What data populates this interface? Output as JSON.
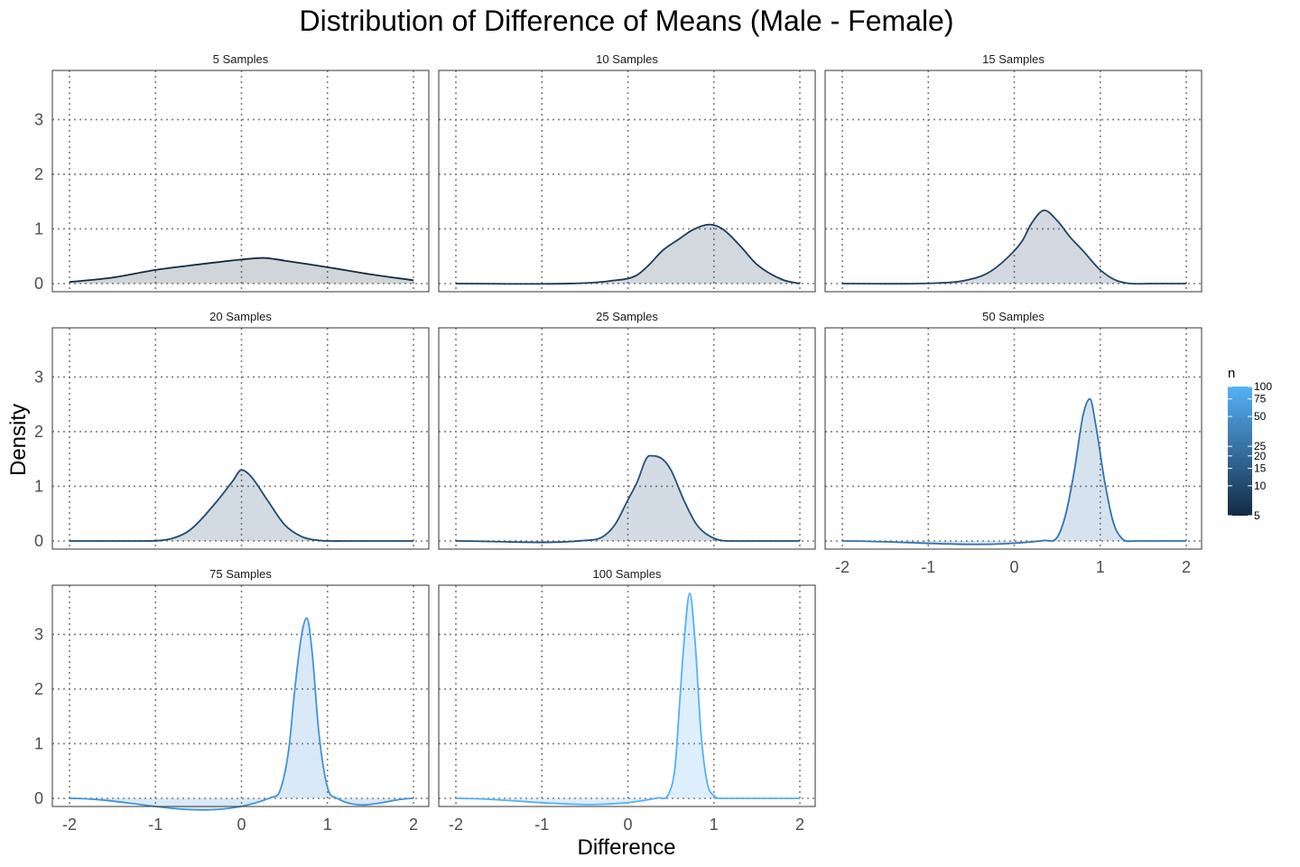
{
  "chart_data": {
    "type": "area",
    "title": "Distribution of Difference of Means (Male - Female)",
    "xlabel": "Difference",
    "ylabel": "Density",
    "xlim": [
      -2,
      2
    ],
    "ylim": [
      0,
      3.9
    ],
    "x_ticks": [
      -2,
      -1,
      0,
      1,
      2
    ],
    "y_ticks": [
      0,
      1,
      2,
      3
    ],
    "grid": true,
    "legend": {
      "title": "n",
      "placement": "right",
      "ticks": [
        5,
        10,
        15,
        20,
        25,
        50,
        75,
        100
      ],
      "color_low": "#132B43",
      "color_high": "#56B1F7"
    },
    "panels": [
      {
        "label": "5  Samples",
        "n": 5,
        "color": "#132B43",
        "x": [
          -2.0,
          -1.5,
          -1.0,
          -0.5,
          0.0,
          0.25,
          0.5,
          1.0,
          1.5,
          2.0
        ],
        "y": [
          0.03,
          0.11,
          0.25,
          0.35,
          0.44,
          0.47,
          0.42,
          0.3,
          0.17,
          0.06
        ]
      },
      {
        "label": "10  Samples",
        "n": 10,
        "color": "#1A3A5A",
        "x": [
          -2.0,
          -0.5,
          -0.2,
          0.1,
          0.25,
          0.4,
          0.6,
          0.75,
          0.95,
          1.1,
          1.3,
          1.5,
          1.8,
          2.0
        ],
        "y": [
          0.0,
          0.01,
          0.05,
          0.15,
          0.35,
          0.6,
          0.82,
          0.98,
          1.08,
          1.0,
          0.7,
          0.35,
          0.07,
          0.0
        ],
        "peak": 1.08
      },
      {
        "label": "15  Samples",
        "n": 15,
        "color": "#1E4366",
        "x": [
          -2.0,
          -0.9,
          -0.6,
          -0.3,
          0.0,
          0.1,
          0.2,
          0.35,
          0.5,
          0.65,
          0.8,
          1.0,
          1.2,
          1.6,
          2.0
        ],
        "y": [
          0.0,
          0.01,
          0.05,
          0.2,
          0.6,
          0.8,
          1.1,
          1.34,
          1.15,
          0.85,
          0.6,
          0.25,
          0.05,
          0.0,
          0.0
        ],
        "peak": 1.34
      },
      {
        "label": "20  Samples",
        "n": 20,
        "color": "#224A70",
        "x": [
          -2.0,
          -1.2,
          -0.8,
          -0.6,
          -0.3,
          -0.1,
          0.0,
          0.1,
          0.3,
          0.5,
          0.7,
          0.9,
          1.2,
          2.0
        ],
        "y": [
          0.0,
          0.0,
          0.05,
          0.2,
          0.7,
          1.1,
          1.3,
          1.2,
          0.75,
          0.3,
          0.08,
          0.01,
          0.0,
          0.0
        ],
        "peak": 1.31
      },
      {
        "label": "25  Samples",
        "n": 25,
        "color": "#25507A",
        "x": [
          -2.0,
          -0.5,
          -0.3,
          -0.15,
          0.0,
          0.1,
          0.25,
          0.4,
          0.5,
          0.65,
          0.8,
          1.0,
          1.2,
          2.0
        ],
        "y": [
          0.0,
          0.01,
          0.07,
          0.3,
          0.75,
          1.05,
          1.56,
          1.5,
          1.3,
          0.75,
          0.3,
          0.05,
          0.0,
          0.0
        ],
        "peak": 1.58
      },
      {
        "label": "50  Samples",
        "n": 50,
        "color": "#3373B1",
        "x": [
          -2.0,
          0.35,
          0.5,
          0.6,
          0.7,
          0.8,
          0.88,
          0.95,
          1.05,
          1.15,
          1.25,
          1.4,
          2.0
        ],
        "y": [
          0.0,
          0.01,
          0.07,
          0.5,
          1.3,
          2.3,
          2.6,
          2.1,
          1.1,
          0.35,
          0.05,
          0.0,
          0.0
        ],
        "peak": 2.6
      },
      {
        "label": "75  Samples",
        "n": 75,
        "color": "#4293D6",
        "x": [
          -2.0,
          0.35,
          0.45,
          0.55,
          0.62,
          0.7,
          0.76,
          0.82,
          0.9,
          1.0,
          1.1,
          2.0
        ],
        "y": [
          0.0,
          0.02,
          0.15,
          0.9,
          2.0,
          3.0,
          3.3,
          2.7,
          1.2,
          0.2,
          0.01,
          0.0
        ],
        "peak": 3.3
      },
      {
        "label": "100  Samples",
        "n": 100,
        "color": "#56B1F7",
        "x": [
          -2.0,
          0.35,
          0.48,
          0.55,
          0.6,
          0.65,
          0.72,
          0.78,
          0.85,
          0.92,
          1.0,
          1.1,
          2.0
        ],
        "y": [
          0.0,
          0.01,
          0.1,
          0.6,
          1.7,
          2.8,
          3.75,
          2.9,
          1.2,
          0.3,
          0.05,
          0.0,
          0.0
        ],
        "peak": 3.76
      }
    ]
  }
}
